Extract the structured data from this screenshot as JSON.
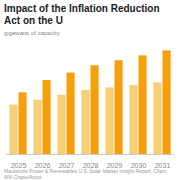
{
  "chart_data": {
    "type": "bar",
    "title": "Impact of the Inflation Reduction Act on the U",
    "subtitle": "gigawatts of capacity",
    "caption": "Mackenzie Power & Renewables U.S. Solar Market Insight Report; Chart: Will Chase/Axios",
    "categories": [
      "2025",
      "2026",
      "2027",
      "2028",
      "2029",
      "2030",
      "2031"
    ],
    "series": [
      {
        "color": "#f8cf77",
        "values": [
          20,
          22,
          24,
          26,
          27,
          28,
          29
        ]
      },
      {
        "color": "#f5a00b",
        "values": [
          25,
          30,
          33,
          36,
          38,
          40,
          42
        ]
      }
    ],
    "ylim": [
      0,
      45
    ],
    "tick_labels": "x"
  }
}
